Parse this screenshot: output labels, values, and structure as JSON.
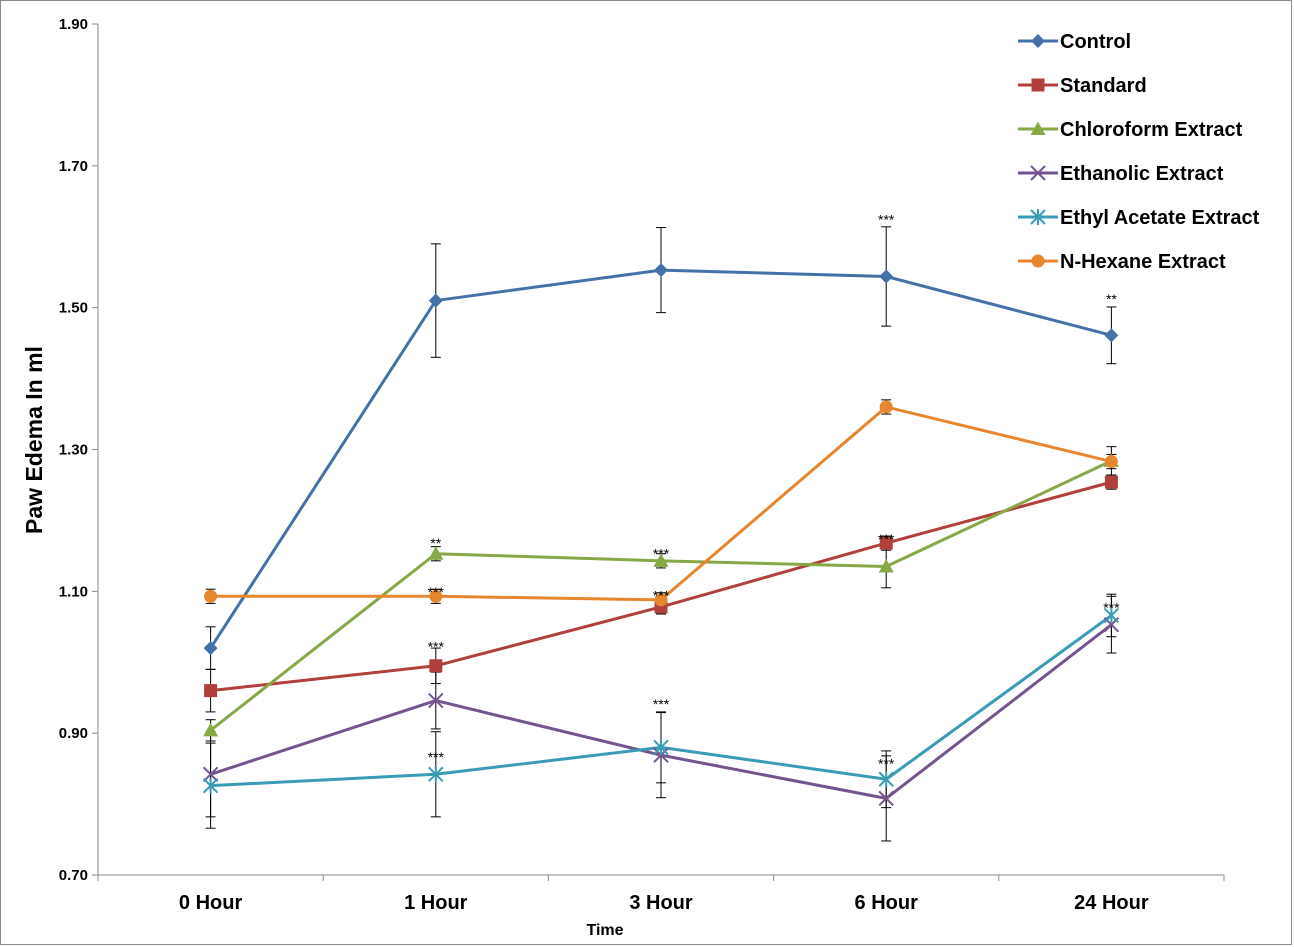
{
  "chart_data": {
    "type": "line",
    "title": "",
    "xlabel": "Time",
    "ylabel": "Paw Edema In ml",
    "ylim": [
      0.7,
      1.9
    ],
    "yticks": [
      "0.70",
      "0.90",
      "1.10",
      "1.30",
      "1.50",
      "1.70",
      "1.90"
    ],
    "categories": [
      "0 Hour",
      "1 Hour",
      "3 Hour",
      "6 Hour",
      "24 Hour"
    ],
    "grid": false,
    "legend_position": "top-right",
    "series": [
      {
        "name": "Control",
        "color": "#4472a8",
        "marker": "diamond",
        "values": [
          1.02,
          1.51,
          1.553,
          1.544,
          1.461
        ],
        "errors": [
          0.03,
          0.08,
          0.06,
          0.07,
          0.04
        ]
      },
      {
        "name": "Standard",
        "color": "#b0403c",
        "marker": "square",
        "values": [
          0.96,
          0.995,
          1.078,
          1.168,
          1.254
        ],
        "errors": [
          0.03,
          0.025,
          0.01,
          0.01,
          0.01
        ]
      },
      {
        "name": "Chloroform Extract",
        "color": "#86a845",
        "marker": "triangle",
        "values": [
          0.904,
          1.153,
          1.143,
          1.135,
          1.284
        ],
        "errors": [
          0.015,
          0.01,
          0.01,
          0.03,
          0.02
        ]
      },
      {
        "name": "Ethanolic Extract",
        "color": "#74548f",
        "marker": "x",
        "values": [
          0.842,
          0.946,
          0.869,
          0.808,
          1.053
        ],
        "errors": [
          0.06,
          0.04,
          0.06,
          0.06,
          0.04
        ]
      },
      {
        "name": "Ethyl Acetate Extract",
        "color": "#3a9bb6",
        "marker": "asterisk",
        "values": [
          0.826,
          0.842,
          0.88,
          0.835,
          1.066
        ],
        "errors": [
          0.06,
          0.06,
          0.05,
          0.04,
          0.03
        ]
      },
      {
        "name": "N-Hexane Extract",
        "color": "#e6872f",
        "marker": "circle",
        "values": [
          1.093,
          1.093,
          1.088,
          1.36,
          1.283
        ],
        "errors": [
          0.01,
          0.01,
          0.01,
          0.01,
          0.01
        ]
      }
    ],
    "annotations": [
      {
        "text": "***",
        "category": "6 Hour",
        "y": 1.617
      },
      {
        "text": "**",
        "category": "24 Hour",
        "y": 1.505
      },
      {
        "text": "**",
        "category": "1 Hour",
        "y": 1.161
      },
      {
        "text": "***",
        "category": "3 Hour",
        "y": 1.146
      },
      {
        "text": "***",
        "category": "6 Hour",
        "y": 1.167
      },
      {
        "text": "***",
        "category": "1 Hour",
        "y": 1.092
      },
      {
        "text": "***",
        "category": "3 Hour",
        "y": 1.087
      },
      {
        "text": "***",
        "category": "1 Hour",
        "y": 1.015
      },
      {
        "text": "***",
        "category": "24 Hour",
        "y": 1.07
      },
      {
        "text": "***",
        "category": "3 Hour",
        "y": 0.934
      },
      {
        "text": "***",
        "category": "1 Hour",
        "y": 0.859
      },
      {
        "text": "***",
        "category": "6 Hour",
        "y": 0.85
      }
    ]
  }
}
